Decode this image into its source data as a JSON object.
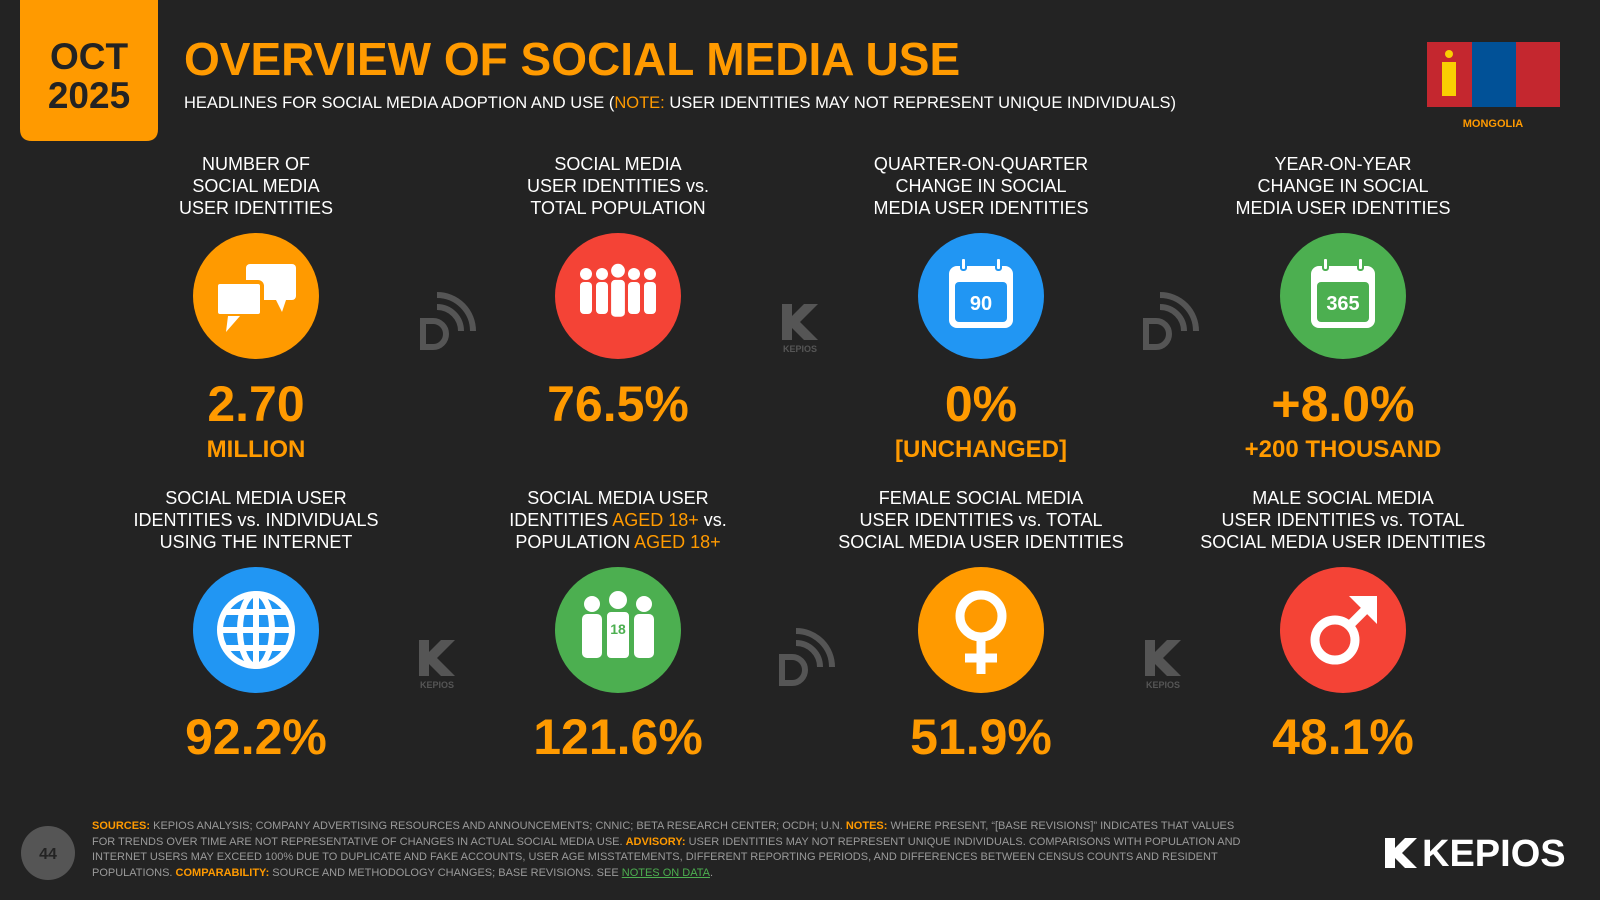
{
  "header": {
    "month": "OCT",
    "year": "2025",
    "title": "OVERVIEW OF SOCIAL MEDIA USE",
    "subtitle": [
      {
        "text": "HEADLINES FOR SOCIAL MEDIA ADOPTION AND USE ("
      },
      {
        "text": "NOTE:",
        "color": "#ff9a00"
      },
      {
        "text": " USER IDENTITIES MAY NOT REPRESENT UNIQUE INDIVIDUALS)"
      }
    ]
  },
  "country": "MONGOLIA",
  "watermark": "KEPIOS",
  "cards": [
    {
      "label": [
        [
          {
            "text": "NUMBER OF"
          }
        ],
        [
          {
            "text": "SOCIAL MEDIA"
          }
        ],
        [
          {
            "text": "USER IDENTITIES"
          }
        ]
      ],
      "color": "#ff9a00",
      "value": "2.70",
      "sublabel": "MILLION"
    },
    {
      "label": [
        [
          {
            "text": "SOCIAL MEDIA"
          }
        ],
        [
          {
            "text": "USER IDENTITIES vs."
          }
        ],
        [
          {
            "text": "TOTAL POPULATION"
          }
        ]
      ],
      "color": "#f44336",
      "value": "76.5%"
    },
    {
      "label": [
        [
          {
            "text": "QUARTER-ON-QUARTER"
          }
        ],
        [
          {
            "text": "CHANGE IN SOCIAL"
          }
        ],
        [
          {
            "text": "MEDIA USER IDENTITIES"
          }
        ]
      ],
      "color": "#2196f3",
      "icon_text": "90",
      "value": "0%",
      "sublabel": "[UNCHANGED]"
    },
    {
      "label": [
        [
          {
            "text": "YEAR-ON-YEAR"
          }
        ],
        [
          {
            "text": "CHANGE IN SOCIAL"
          }
        ],
        [
          {
            "text": "MEDIA USER IDENTITIES"
          }
        ]
      ],
      "color": "#4caf50",
      "icon_text": "365",
      "value": "+8.0%",
      "sublabel": "+200 THOUSAND"
    },
    {
      "label": [
        [
          {
            "text": "SOCIAL MEDIA USER"
          }
        ],
        [
          {
            "text": "IDENTITIES vs. INDIVIDUALS"
          }
        ],
        [
          {
            "text": "USING THE INTERNET"
          }
        ]
      ],
      "color": "#2196f3",
      "value": "92.2%"
    },
    {
      "label": [
        [
          {
            "text": "SOCIAL MEDIA USER"
          }
        ],
        [
          {
            "text": "IDENTITIES "
          },
          {
            "text": "AGED 18+",
            "color": "#ff9a00"
          },
          {
            "text": " vs."
          }
        ],
        [
          {
            "text": "POPULATION "
          },
          {
            "text": "AGED 18+",
            "color": "#ff9a00"
          }
        ]
      ],
      "color": "#4caf50",
      "icon_text": "18",
      "value": "121.6%"
    },
    {
      "label": [
        [
          {
            "text": "FEMALE SOCIAL MEDIA"
          }
        ],
        [
          {
            "text": "USER IDENTITIES vs. TOTAL"
          }
        ],
        [
          {
            "text": "SOCIAL MEDIA USER IDENTITIES"
          }
        ]
      ],
      "color": "#ff9a00",
      "value": "51.9%"
    },
    {
      "label": [
        [
          {
            "text": "MALE SOCIAL MEDIA"
          }
        ],
        [
          {
            "text": "USER IDENTITIES vs. TOTAL"
          }
        ],
        [
          {
            "text": "SOCIAL MEDIA USER IDENTITIES"
          }
        ]
      ],
      "color": "#f44336",
      "value": "48.1%"
    }
  ],
  "footer": {
    "page": "44",
    "brand": "KEPIOS",
    "notes": [
      {
        "text": "SOURCES:",
        "color": "#ff9a00"
      },
      {
        "text": " KEPIOS ANALYSIS; COMPANY ADVERTISING RESOURCES AND ANNOUNCEMENTS; CNNIC; BETA RESEARCH CENTER; OCDH; U.N. "
      },
      {
        "text": "NOTES:",
        "color": "#ff9a00"
      },
      {
        "text": " WHERE PRESENT, “[BASE REVISIONS]” INDICATES THAT VALUES FOR TRENDS OVER TIME ARE NOT REPRESENTATIVE OF CHANGES IN ACTUAL SOCIAL MEDIA USE. "
      },
      {
        "text": "ADVISORY:",
        "color": "#ff9a00"
      },
      {
        "text": " USER IDENTITIES MAY NOT REPRESENT UNIQUE INDIVIDUALS. COMPARISONS WITH POPULATION AND INTERNET USERS MAY EXCEED 100% DUE TO DUPLICATE AND FAKE ACCOUNTS, USER AGE MISSTATEMENTS, DIFFERENT REPORTING PERIODS, AND DIFFERENCES BETWEEN CENSUS COUNTS AND RESIDENT POPULATIONS. "
      },
      {
        "text": "COMPARABILITY:",
        "color": "#ff9a00"
      },
      {
        "text": " SOURCE AND METHODOLOGY CHANGES; BASE REVISIONS. SEE "
      },
      {
        "text": "NOTES ON DATA",
        "color": "#4caf50",
        "underline": true
      },
      {
        "text": "."
      }
    ]
  }
}
